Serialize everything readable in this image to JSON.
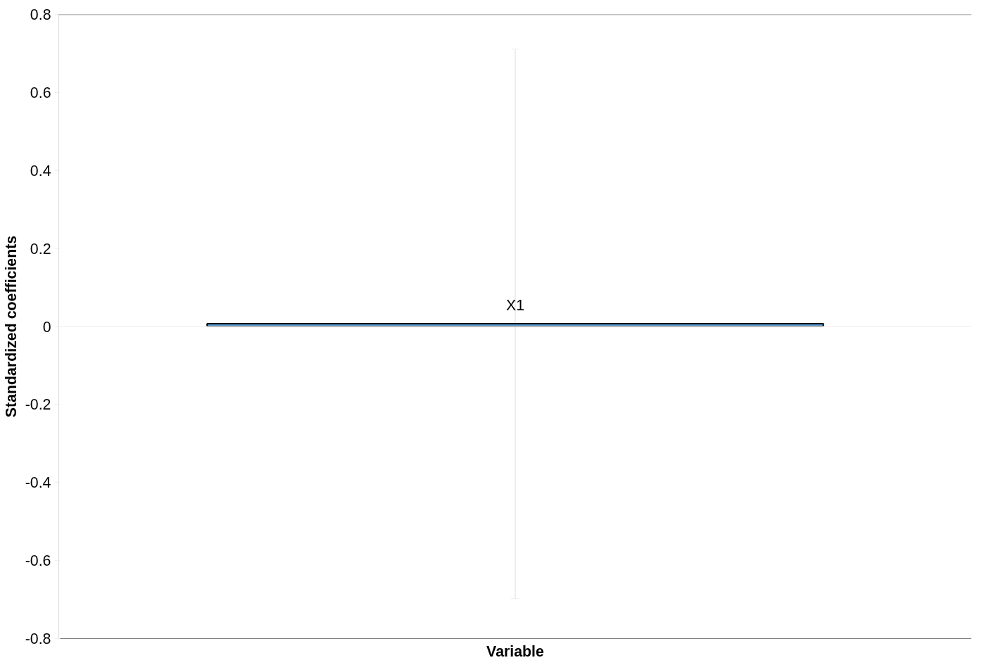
{
  "chart_data": {
    "type": "bar",
    "xlabel": "Variable",
    "ylabel": "Standardized coefficients",
    "categories": [
      "X1"
    ],
    "series": [
      {
        "color": "#5b9bd5",
        "values": [
          0.007
        ],
        "errors": [
          0.704
        ]
      }
    ],
    "ylim": [
      -0.8,
      0.8
    ],
    "yticks": [
      -0.8,
      -0.6,
      -0.4,
      -0.2,
      0,
      0.2,
      0.4,
      0.6,
      0.8
    ],
    "ref_lines": [
      {
        "axis": "y",
        "value": 0,
        "color": "#f2f2f2"
      }
    ],
    "grid": false,
    "tick_labels": "y"
  }
}
